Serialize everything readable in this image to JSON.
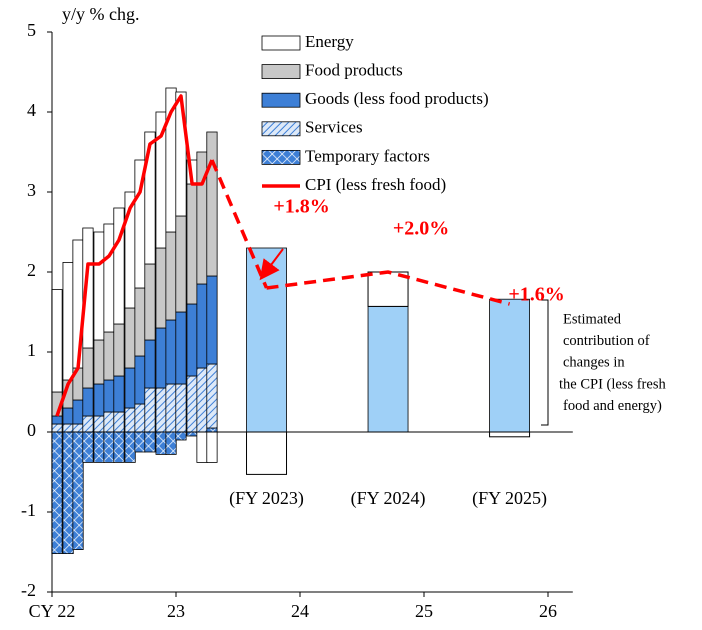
{
  "chart_data": {
    "type": "bar",
    "y_label": "y/y % chg.",
    "xlim": [
      22,
      26.2
    ],
    "xticks": [
      {
        "value": 22,
        "label": "CY 22"
      },
      23,
      24,
      25,
      26
    ],
    "ylim": [
      -2,
      5
    ],
    "yticks": [
      -2,
      -1,
      0,
      1,
      2,
      3,
      4,
      5
    ],
    "x": [
      22.04,
      22.13,
      22.21,
      22.29,
      22.38,
      22.46,
      22.54,
      22.63,
      22.71,
      22.79,
      22.88,
      22.96,
      23.04,
      23.13,
      23.21,
      23.29
    ],
    "series": [
      {
        "name": "Energy",
        "color": "#ffffff",
        "values": [
          1.28,
          1.47,
          1.6,
          1.5,
          1.35,
          1.35,
          1.45,
          1.45,
          1.6,
          1.65,
          1.7,
          1.8,
          1.55,
          0.3,
          -0.38,
          -0.38
        ]
      },
      {
        "name": "Food products",
        "color": "#c8c8c8",
        "values": [
          0.3,
          0.35,
          0.4,
          0.5,
          0.55,
          0.6,
          0.65,
          0.75,
          0.85,
          0.95,
          1.0,
          1.1,
          1.2,
          1.5,
          1.65,
          1.8
        ]
      },
      {
        "name": "Goods (less food products)",
        "color": "#3d7fd6",
        "values": [
          0.1,
          0.2,
          0.3,
          0.35,
          0.4,
          0.4,
          0.45,
          0.5,
          0.6,
          0.6,
          0.75,
          0.8,
          0.9,
          0.9,
          1.05,
          1.1
        ]
      },
      {
        "name": "Services",
        "color": "#3d7fd6",
        "pattern": "diagonal",
        "values": [
          0.1,
          0.1,
          0.1,
          0.2,
          0.2,
          0.25,
          0.25,
          0.3,
          0.35,
          0.55,
          0.55,
          0.6,
          0.6,
          0.7,
          0.8,
          0.8
        ]
      },
      {
        "name": "Temporary factors",
        "color": "#3d7fd6",
        "pattern": "diamond",
        "values": [
          -1.52,
          -1.52,
          -1.47,
          -0.38,
          -0.38,
          -0.38,
          -0.38,
          -0.38,
          -0.25,
          -0.25,
          -0.28,
          -0.28,
          -0.1,
          -0.05,
          0,
          0.05
        ]
      }
    ],
    "line": {
      "name": "CPI (less fresh food)",
      "color": "#ff0000",
      "values": [
        0.2,
        0.6,
        0.8,
        2.1,
        2.1,
        2.2,
        2.4,
        2.8,
        3.0,
        3.6,
        3.7,
        4.0,
        4.2,
        3.1,
        3.1,
        3.4
      ]
    },
    "projection": {
      "labels": [
        "(FY 2023)",
        "(FY 2024)",
        "(FY 2025)"
      ],
      "x": [
        23.73,
        24.71,
        25.69
      ],
      "core": [
        2.3,
        1.57,
        1.66
      ],
      "core_color": "#9fd0f7",
      "energy": [
        -0.53,
        0.43,
        -0.06
      ],
      "energy_color": "#ffffff",
      "values": [
        1.8,
        2.0,
        1.6
      ],
      "value_labels": [
        "+1.8%",
        "+2.0%",
        "+1.6%"
      ]
    },
    "annotation": [
      "Estimated",
      "contribution of",
      "changes in",
      "the CPI (less fresh",
      "food and energy)"
    ]
  }
}
